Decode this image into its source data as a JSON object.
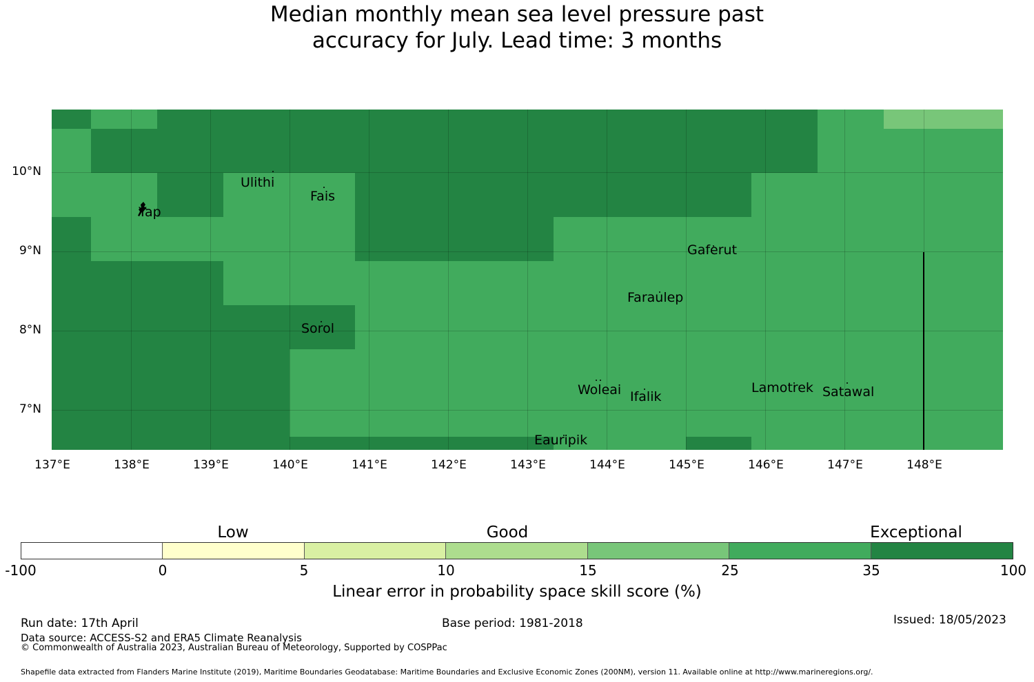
{
  "title_line1": "Median monthly mean sea level pressure past",
  "title_line2": "accuracy for July. Lead time: 3 months",
  "colors": {
    "base": "#41ab5d",
    "exceptional": "#238443",
    "very_good": "#41ab5d",
    "good_high": "#78c679",
    "boundary_line": "#000000"
  },
  "map": {
    "latitude_labels": [
      "10°N",
      "9°N",
      "8°N",
      "7°N"
    ],
    "longitude_labels": [
      "137°E",
      "138°E",
      "139°E",
      "140°E",
      "141°E",
      "142°E",
      "143°E",
      "144°E",
      "145°E",
      "146°E",
      "147°E",
      "148°E"
    ],
    "places": [
      "Ulithi",
      "Fais",
      "Yap",
      "Gaferut",
      "Faraulep",
      "Sorol",
      "Woleai",
      "Ifalik",
      "Lamotrek",
      "Satawal",
      "Eauripik"
    ]
  },
  "legend": {
    "categories": [
      "Low",
      "Good",
      "Exceptional"
    ],
    "ticks": [
      "-100",
      "0",
      "5",
      "10",
      "15",
      "25",
      "35",
      "100"
    ],
    "colors": [
      "#ffffff",
      "#ffffcc",
      "#d9f0a3",
      "#addd8e",
      "#78c679",
      "#41ab5d",
      "#238443"
    ],
    "label": "Linear error in probability space skill score (%)"
  },
  "footer": {
    "run_date": "Run date: 17th April",
    "base_period": "Base period: 1981-2018",
    "issued": "Issued: 18/05/2023",
    "data_source": "Data source: ACCESS-S2 and ERA5 Climate Reanalysis",
    "copyright": "© Commonwealth of Australia 2023, Australian Bureau of Meteorology, Supported by COSPPac",
    "shapefile": "Shapefile data extracted from Flanders Marine Institute (2019), Maritime Boundaries Geodatabase: Maritime Boundaries and Exclusive Economic Zones (200NM), version 11. Available online at http://www.marineregions.org/."
  }
}
